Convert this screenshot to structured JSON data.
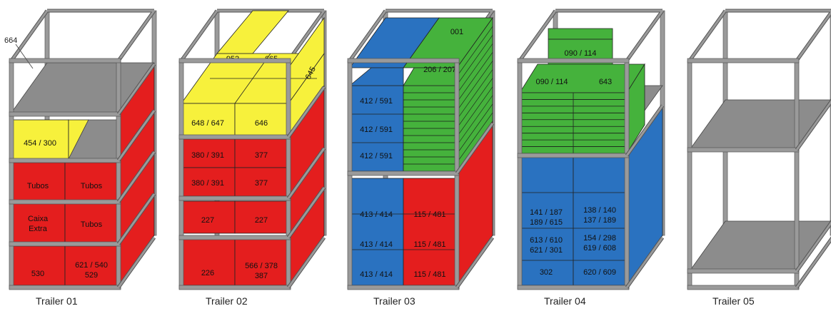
{
  "callout_label": "664",
  "trailers": [
    {
      "caption": "Trailer 01",
      "labels": [
        "454 / 300",
        "Tubos",
        "Tubos",
        "Caixa",
        "Extra",
        "Tubos",
        "530",
        "621 / 540",
        "529"
      ]
    },
    {
      "caption": "Trailer 02",
      "labels": [
        "952",
        "665",
        "645",
        "648 / 647",
        "646",
        "380 / 391",
        "377",
        "380 / 391",
        "377",
        "227",
        "227",
        "226",
        "566 / 378",
        "387"
      ]
    },
    {
      "caption": "Trailer 03",
      "labels": [
        "001",
        "206 / 207",
        "412 / 591",
        "412 / 591",
        "412 / 591",
        "413 / 414",
        "115 / 481",
        "413 / 414",
        "115 / 481",
        "413 / 414",
        "115 / 481"
      ]
    },
    {
      "caption": "Trailer 04",
      "labels": [
        "090 / 114",
        "090 / 114",
        "643",
        "141 / 187",
        "189 / 615",
        "138 / 140",
        "137 / 189",
        "613 / 610",
        "621 / 301",
        "154 / 298",
        "619 / 608",
        "302",
        "620 / 609"
      ]
    },
    {
      "caption": "Trailer 05",
      "labels": []
    }
  ],
  "colors": {
    "red": "#e41e1e",
    "red_side": "#c81414",
    "yellow": "#f7f13c",
    "yellow_side": "#dcd528",
    "blue": "#2a72c0",
    "blue_side": "#1f5da3",
    "green": "#45b23c",
    "green_side": "#3a9932",
    "frame": "#9a9a9a",
    "frame_edge": "#555555",
    "shelf": "#8c8c8c"
  }
}
